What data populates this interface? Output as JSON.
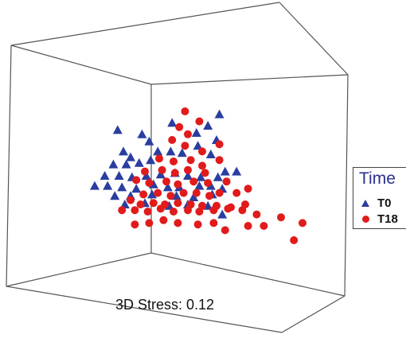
{
  "chart_data": {
    "type": "scatter",
    "projection": "3d-nmds",
    "annotation": "3D Stress: 0.12",
    "legend": {
      "title": "Time",
      "placement": "right"
    },
    "series": [
      {
        "name": "T0",
        "marker": "triangle",
        "color": "#2a3ea0",
        "points": [
          [
            0.59,
            0.82
          ],
          [
            0.84,
            0.8
          ],
          [
            0.92,
            0.88
          ],
          [
            0.21,
            0.77
          ],
          [
            0.38,
            0.74
          ],
          [
            0.76,
            0.75
          ],
          [
            0.9,
            0.7
          ],
          [
            0.43,
            0.69
          ],
          [
            0.49,
            0.62
          ],
          [
            0.77,
            0.66
          ],
          [
            0.86,
            0.6
          ],
          [
            0.25,
            0.62
          ],
          [
            0.3,
            0.58
          ],
          [
            0.44,
            0.56
          ],
          [
            0.58,
            0.62
          ],
          [
            0.66,
            0.61
          ],
          [
            0.18,
            0.53
          ],
          [
            0.27,
            0.53
          ],
          [
            0.36,
            0.54
          ],
          [
            0.96,
            0.48
          ],
          [
            1.04,
            0.48
          ],
          [
            0.12,
            0.45
          ],
          [
            0.22,
            0.45
          ],
          [
            0.31,
            0.44
          ],
          [
            0.41,
            0.45
          ],
          [
            0.51,
            0.46
          ],
          [
            0.61,
            0.47
          ],
          [
            0.7,
            0.45
          ],
          [
            0.79,
            0.44
          ],
          [
            0.91,
            0.44
          ],
          [
            0.05,
            0.38
          ],
          [
            0.14,
            0.38
          ],
          [
            0.24,
            0.37
          ],
          [
            0.34,
            0.36
          ],
          [
            0.46,
            0.39
          ],
          [
            0.56,
            0.37
          ],
          [
            0.64,
            0.37
          ],
          [
            0.78,
            0.38
          ],
          [
            0.86,
            0.38
          ],
          [
            0.94,
            0.36
          ],
          [
            0.19,
            0.31
          ],
          [
            0.3,
            0.31
          ],
          [
            0.45,
            0.32
          ],
          [
            0.62,
            0.31
          ],
          [
            0.74,
            0.3
          ],
          [
            0.87,
            0.32
          ],
          [
            0.26,
            0.25
          ],
          [
            0.4,
            0.26
          ],
          [
            0.57,
            0.24
          ],
          [
            0.7,
            0.25
          ],
          [
            0.84,
            0.24
          ],
          [
            0.94,
            0.18
          ]
        ]
      },
      {
        "name": "T18",
        "marker": "circle",
        "color": "#e11b1b",
        "points": [
          [
            0.68,
            0.9
          ],
          [
            0.78,
            0.83
          ],
          [
            0.64,
            0.79
          ],
          [
            0.7,
            0.74
          ],
          [
            0.59,
            0.7
          ],
          [
            0.68,
            0.66
          ],
          [
            0.8,
            0.62
          ],
          [
            0.92,
            0.67
          ],
          [
            0.5,
            0.57
          ],
          [
            0.6,
            0.55
          ],
          [
            0.72,
            0.56
          ],
          [
            0.8,
            0.52
          ],
          [
            0.92,
            0.56
          ],
          [
            0.4,
            0.48
          ],
          [
            0.52,
            0.49
          ],
          [
            0.61,
            0.47
          ],
          [
            0.7,
            0.49
          ],
          [
            0.82,
            0.47
          ],
          [
            0.97,
            0.41
          ],
          [
            0.34,
            0.42
          ],
          [
            0.43,
            0.4
          ],
          [
            0.55,
            0.41
          ],
          [
            0.63,
            0.39
          ],
          [
            0.74,
            0.41
          ],
          [
            0.84,
            0.4
          ],
          [
            0.92,
            0.33
          ],
          [
            1.04,
            0.33
          ],
          [
            1.12,
            0.36
          ],
          [
            0.39,
            0.32
          ],
          [
            0.49,
            0.33
          ],
          [
            0.58,
            0.31
          ],
          [
            0.67,
            0.33
          ],
          [
            0.76,
            0.33
          ],
          [
            0.85,
            0.31
          ],
          [
            0.3,
            0.28
          ],
          [
            0.37,
            0.25
          ],
          [
            0.46,
            0.26
          ],
          [
            0.54,
            0.25
          ],
          [
            0.63,
            0.26
          ],
          [
            0.72,
            0.25
          ],
          [
            0.8,
            0.24
          ],
          [
            0.9,
            0.24
          ],
          [
            1.0,
            0.23
          ],
          [
            1.1,
            0.25
          ],
          [
            0.24,
            0.21
          ],
          [
            0.33,
            0.21
          ],
          [
            0.42,
            0.2
          ],
          [
            0.51,
            0.22
          ],
          [
            0.6,
            0.2
          ],
          [
            0.7,
            0.21
          ],
          [
            0.78,
            0.2
          ],
          [
            0.88,
            0.21
          ],
          [
            0.98,
            0.22
          ],
          [
            1.08,
            0.21
          ],
          [
            1.18,
            0.18
          ],
          [
            1.35,
            0.16
          ],
          [
            1.5,
            0.12
          ],
          [
            1.44,
            0.0
          ],
          [
            1.23,
            0.1
          ],
          [
            1.12,
            0.1
          ],
          [
            0.96,
            0.07
          ],
          [
            0.33,
            0.11
          ],
          [
            0.43,
            0.12
          ],
          [
            0.53,
            0.14
          ],
          [
            0.63,
            0.12
          ],
          [
            0.77,
            0.11
          ],
          [
            0.88,
            0.12
          ]
        ]
      }
    ]
  },
  "colors": {
    "frame": "#555555",
    "legend_title": "#2a2f8f"
  }
}
